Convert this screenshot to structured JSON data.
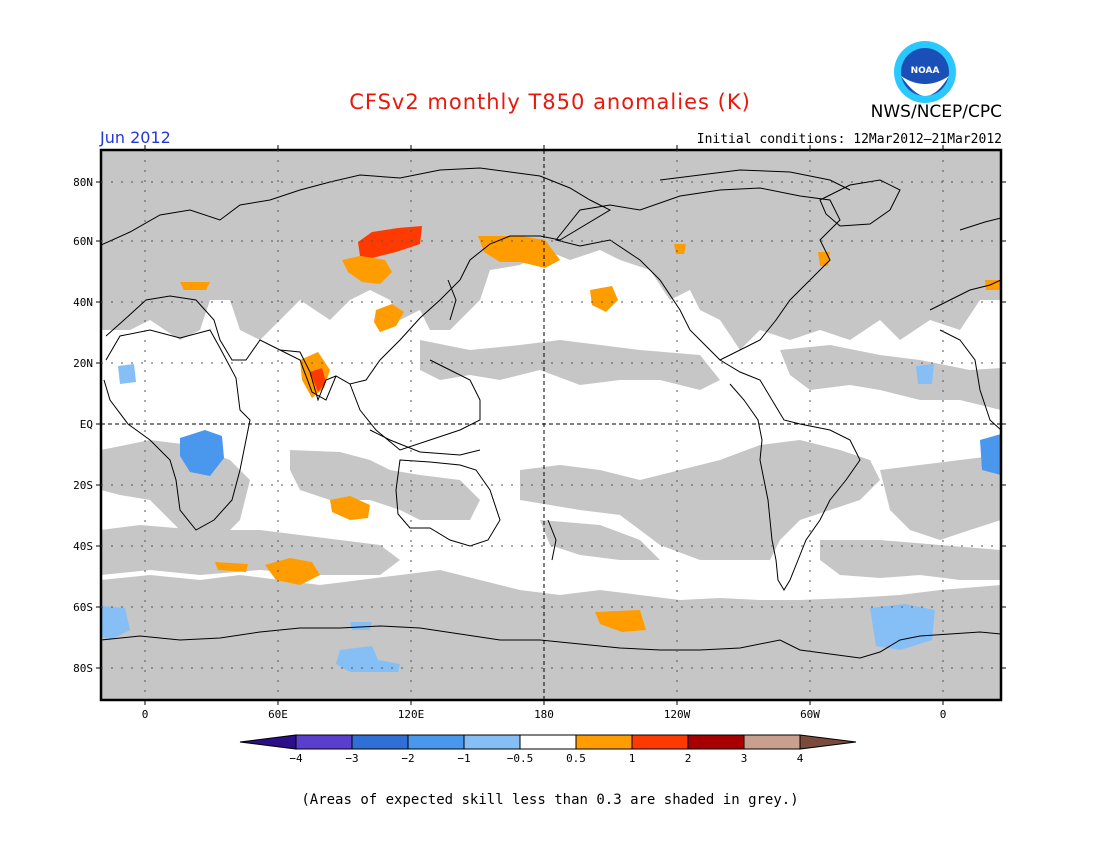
{
  "title": "CFSv2 monthly T850 anomalies (K)",
  "month": "Jun 2012",
  "agency": "NWS/NCEP/CPC",
  "logo_text": "NOAA",
  "initial_conditions": "Initial conditions: 12Mar2012–21Mar2012",
  "footnote": "(Areas of expected skill less than 0.3 are shaded in grey.)",
  "lat_labels": [
    "80N",
    "60N",
    "40N",
    "20N",
    "EQ",
    "20S",
    "40S",
    "60S",
    "80S"
  ],
  "lon_labels": [
    "0",
    "60E",
    "120E",
    "180",
    "120W",
    "60W",
    "0"
  ],
  "colorbar": {
    "labels": [
      "−4",
      "−3",
      "−2",
      "−1",
      "−0.5",
      "0.5",
      "1",
      "2",
      "3",
      "4"
    ],
    "colors": [
      "#2b0f8a",
      "#5a3fcf",
      "#2f6fd6",
      "#4a97ee",
      "#85bff5",
      "#ffffff",
      "#ff9c00",
      "#ff3a00",
      "#a80000",
      "#c9a08e",
      "#7a4a3a"
    ]
  },
  "colors": {
    "title": "#e8180c",
    "month": "#2237d8",
    "skill_grey": "#c6c6c6",
    "logo_blue": "#1a4fb8",
    "logo_cyan": "#29c9ff"
  }
}
